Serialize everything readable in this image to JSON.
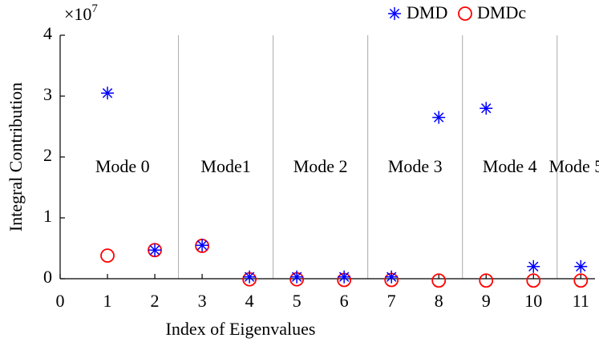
{
  "chart_data": {
    "type": "scatter",
    "xlabel": "Index of Eigenvalues",
    "ylabel": "Integral Contribution",
    "multiplier": {
      "base": "×10",
      "exponent": "7"
    },
    "x": [
      1,
      2,
      3,
      4,
      5,
      6,
      7,
      8,
      9,
      10,
      11
    ],
    "series": [
      {
        "name": "DMD",
        "color": "#0000ff",
        "marker": "asterisk",
        "values": [
          3.05,
          0.47,
          0.55,
          0.03,
          0.03,
          0.03,
          0.03,
          2.65,
          2.8,
          0.2,
          0.2
        ]
      },
      {
        "name": "DMDc",
        "color": "#ff0000",
        "marker": "circle",
        "values": [
          0.38,
          0.47,
          0.54,
          -0.01,
          -0.01,
          -0.02,
          -0.02,
          -0.03,
          -0.03,
          -0.03,
          -0.03
        ]
      }
    ],
    "modes": [
      "Mode 0",
      "Mode1",
      "Mode 2",
      "Mode 3",
      "Mode 4",
      "Mode 5"
    ],
    "xlim": [
      0,
      11.3
    ],
    "ylim": [
      0,
      4
    ],
    "xticks": [
      0,
      1,
      2,
      3,
      4,
      5,
      6,
      7,
      8,
      9,
      10,
      11
    ],
    "yticks": [
      0,
      1,
      2,
      3,
      4
    ],
    "legend": "top-right"
  }
}
